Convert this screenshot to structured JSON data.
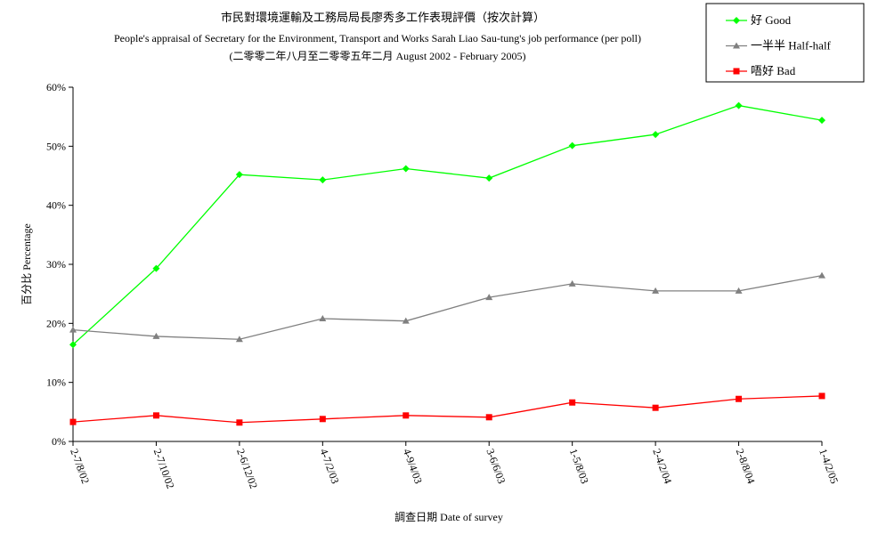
{
  "chart_data": {
    "type": "line",
    "title": "市民對環境運輸及工務局局長廖秀多工作表現評價（按次計算）",
    "subtitle": "People's appraisal of Secretary for the Environment, Transport and Works Sarah Liao Sau-tung's job performance (per poll)",
    "subtitle2": "(二零零二年八月至二零零五年二月 August 2002 - February 2005)",
    "x_label": "調查日期 Date of survey",
    "y_label": "百分比 Percentage",
    "categories": [
      "2-7/8/02",
      "2-7/10/02",
      "2-6/12/02",
      "4-7/2/03",
      "4-9/4/03",
      "3-6/6/03",
      "1-5/8/03",
      "2-4/2/04",
      "2-8/8/04",
      "1-4/2/05"
    ],
    "series": [
      {
        "name": "好 Good",
        "color": "#00ff00",
        "marker": "diamond",
        "values": [
          16.4,
          29.3,
          45.2,
          44.3,
          46.2,
          44.6,
          50.1,
          52.0,
          56.9,
          54.4
        ]
      },
      {
        "name": "一半半 Half-half",
        "color": "#808080",
        "marker": "triangle",
        "values": [
          18.9,
          17.8,
          17.3,
          20.8,
          20.4,
          24.4,
          26.7,
          25.5,
          25.5,
          28.1
        ]
      },
      {
        "name": "唔好 Bad",
        "color": "#ff0000",
        "marker": "square",
        "values": [
          3.3,
          4.4,
          3.2,
          3.8,
          4.4,
          4.1,
          6.6,
          5.7,
          7.2,
          7.7
        ]
      }
    ],
    "ylim": [
      0,
      60
    ],
    "yticks": [
      {
        "value": 0,
        "label": "0%"
      },
      {
        "value": 10,
        "label": "10%"
      },
      {
        "value": 20,
        "label": "20%"
      },
      {
        "value": 30,
        "label": "30%"
      },
      {
        "value": 40,
        "label": "40%"
      },
      {
        "value": 50,
        "label": "50%"
      },
      {
        "value": 60,
        "label": "60%"
      }
    ],
    "grid": false,
    "legend": "top-right"
  }
}
